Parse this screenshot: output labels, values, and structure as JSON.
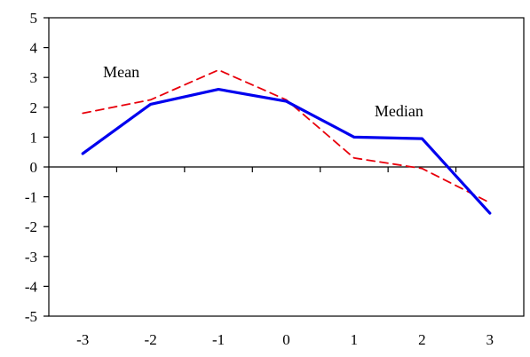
{
  "chart_data": {
    "type": "line",
    "x": [
      -3,
      -2,
      -1,
      0,
      1,
      2,
      3
    ],
    "xlim": [
      -3.5,
      3.5
    ],
    "ylim": [
      -5,
      5
    ],
    "x_ticks": [
      -3,
      -2,
      -1,
      0,
      1,
      2,
      3
    ],
    "y_ticks": [
      5,
      4,
      3,
      2,
      1,
      0,
      -1,
      -2,
      -3,
      -4,
      -5
    ],
    "x_tick_labels": [
      "-3",
      "-2",
      "-1",
      "0",
      "1",
      "2",
      "3"
    ],
    "y_tick_labels": [
      "5",
      "4",
      "3",
      "2",
      "1",
      "0",
      "-1",
      "-2",
      "-3",
      "-4",
      "-5"
    ],
    "grid": false,
    "legend": "none",
    "series": [
      {
        "name": "Mean",
        "values": [
          1.8,
          2.25,
          3.25,
          2.25,
          0.3,
          -0.05,
          -1.2
        ],
        "color": "#e8000b",
        "style": "dashed"
      },
      {
        "name": "Median",
        "values": [
          0.45,
          2.1,
          2.6,
          2.2,
          1.0,
          0.95,
          -1.55
        ],
        "color": "#0000ee",
        "style": "solid"
      }
    ],
    "annotations": [
      {
        "text": "Mean",
        "x": -2.7,
        "y": 3.0
      },
      {
        "text": "Median",
        "x": 1.3,
        "y": 1.7
      }
    ]
  }
}
